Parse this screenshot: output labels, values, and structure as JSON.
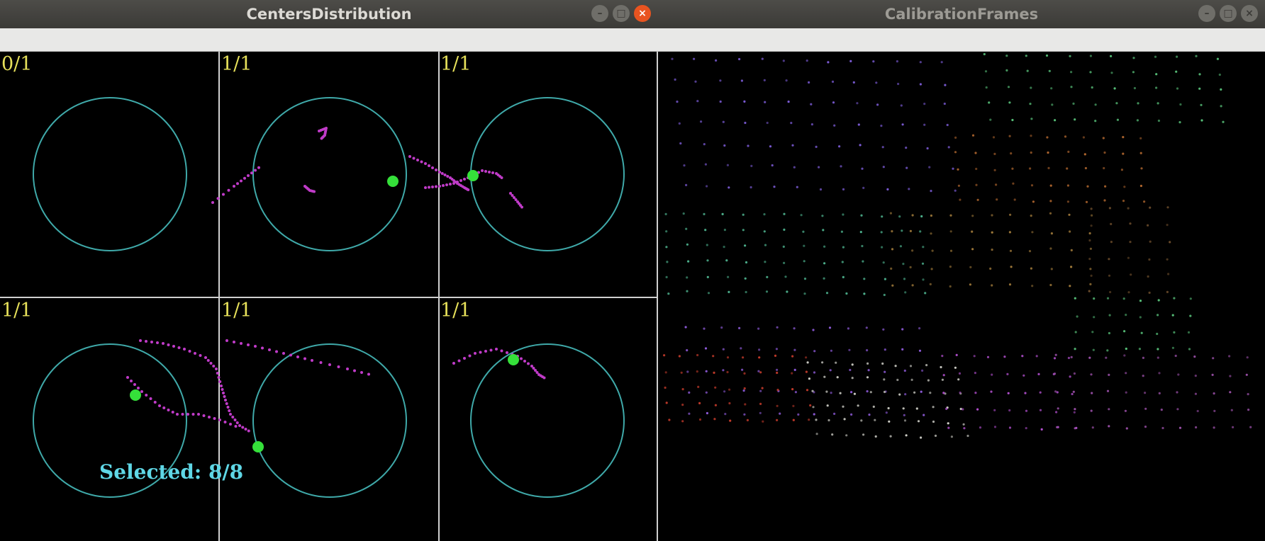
{
  "windows": {
    "left": {
      "title": "CentersDistribution"
    },
    "right": {
      "title": "CalibrationFrames"
    }
  },
  "controls": {
    "minimize": "–",
    "maximize": "□",
    "close": "×"
  },
  "grid": {
    "cells": [
      {
        "label": "0/1"
      },
      {
        "label": "1/1"
      },
      {
        "label": "1/1"
      },
      {
        "label": "1/1"
      },
      {
        "label": "1/1"
      },
      {
        "label": "1/1"
      }
    ]
  },
  "status": {
    "selected_label": "Selected:",
    "selected_value": "8/8"
  },
  "colors": {
    "circle": "#3fa9a9",
    "trail": "#c03bc8",
    "center": "#35e03a",
    "label": "#e6e05a",
    "selected": "#5fd7e6",
    "divider": "#d0d0d0"
  }
}
